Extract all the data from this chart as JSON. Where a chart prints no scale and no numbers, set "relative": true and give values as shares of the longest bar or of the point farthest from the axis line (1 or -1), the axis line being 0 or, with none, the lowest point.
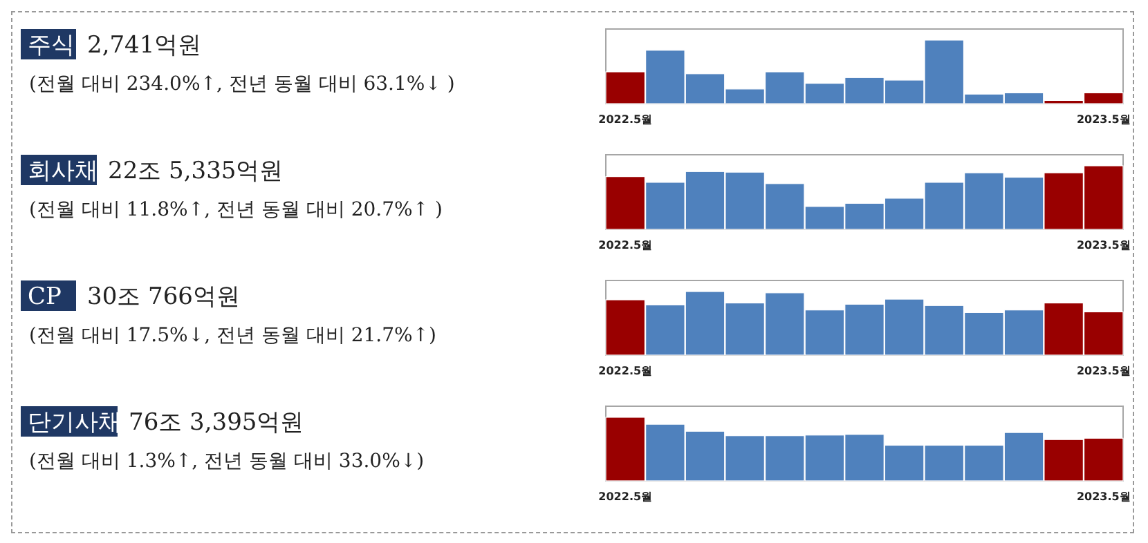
{
  "chart_data": [
    {
      "type": "bar",
      "annotations": [
        "주식",
        "2,741억원",
        "(전월 대비 234.0%↑, 전년 동월 대비 63.1%↓ )"
      ],
      "relative": true,
      "grid": false,
      "categories": [
        "2022.5월",
        null,
        null,
        null,
        null,
        null,
        null,
        null,
        null,
        null,
        null,
        null,
        "2023.5월"
      ],
      "values": [
        0.5,
        0.84,
        0.47,
        0.23,
        0.5,
        0.32,
        0.41,
        0.37,
        1,
        0.15,
        0.17,
        0.05,
        0.17
      ],
      "colors": [
        "#990000",
        "#4f81bd",
        "#4f81bd",
        "#4f81bd",
        "#4f81bd",
        "#4f81bd",
        "#4f81bd",
        "#4f81bd",
        "#4f81bd",
        "#4f81bd",
        "#4f81bd",
        "#990000",
        "#990000"
      ]
    },
    {
      "type": "bar",
      "annotations": [
        "회사채",
        "22조 5,335억원",
        "(전월 대비 11.8%↑, 전년 동월 대비 20.7%↑ )"
      ],
      "relative": true,
      "grid": false,
      "categories": [
        "2022.5월",
        null,
        null,
        null,
        null,
        null,
        null,
        null,
        null,
        null,
        null,
        null,
        "2023.5월"
      ],
      "values": [
        0.83,
        0.74,
        0.91,
        0.9,
        0.72,
        0.36,
        0.41,
        0.49,
        0.74,
        0.89,
        0.82,
        0.89,
        1
      ],
      "colors": [
        "#990000",
        "#4f81bd",
        "#4f81bd",
        "#4f81bd",
        "#4f81bd",
        "#4f81bd",
        "#4f81bd",
        "#4f81bd",
        "#4f81bd",
        "#4f81bd",
        "#4f81bd",
        "#990000",
        "#990000"
      ]
    },
    {
      "type": "bar",
      "annotations": [
        "CP",
        "30조 766억원",
        "(전월 대비 17.5%↓, 전년 동월 대비 21.7%↑)"
      ],
      "relative": true,
      "grid": false,
      "categories": [
        "2022.5월",
        null,
        null,
        null,
        null,
        null,
        null,
        null,
        null,
        null,
        null,
        null,
        "2023.5월"
      ],
      "values": [
        0.87,
        0.79,
        1,
        0.82,
        0.98,
        0.71,
        0.8,
        0.88,
        0.78,
        0.67,
        0.71,
        0.82,
        0.68
      ],
      "colors": [
        "#990000",
        "#4f81bd",
        "#4f81bd",
        "#4f81bd",
        "#4f81bd",
        "#4f81bd",
        "#4f81bd",
        "#4f81bd",
        "#4f81bd",
        "#4f81bd",
        "#4f81bd",
        "#990000",
        "#990000"
      ]
    },
    {
      "type": "bar",
      "annotations": [
        "단기사채",
        "76조 3,395억원",
        "(전월 대비 1.3%↑, 전년 동월 대비 33.0%↓)"
      ],
      "relative": true,
      "grid": false,
      "categories": [
        "2022.5월",
        null,
        null,
        null,
        null,
        null,
        null,
        null,
        null,
        null,
        null,
        null,
        "2023.5월"
      ],
      "values": [
        1,
        0.89,
        0.78,
        0.71,
        0.71,
        0.72,
        0.73,
        0.56,
        0.56,
        0.56,
        0.76,
        0.65,
        0.67
      ],
      "colors": [
        "#990000",
        "#4f81bd",
        "#4f81bd",
        "#4f81bd",
        "#4f81bd",
        "#4f81bd",
        "#4f81bd",
        "#4f81bd",
        "#4f81bd",
        "#4f81bd",
        "#4f81bd",
        "#990000",
        "#990000"
      ]
    }
  ]
}
